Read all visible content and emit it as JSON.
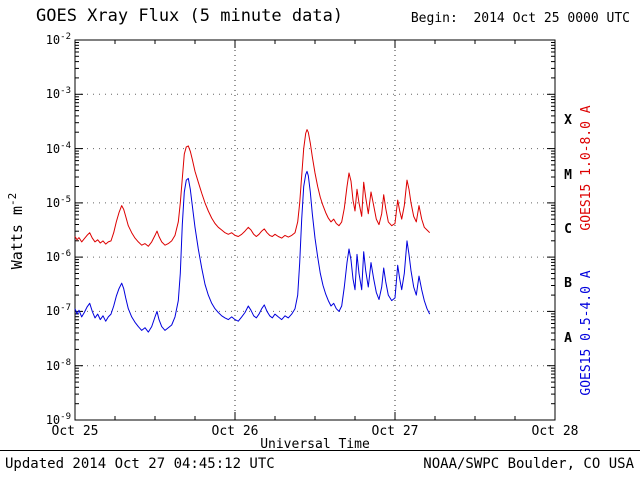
{
  "header": {
    "title": "GOES Xray Flux (5 minute data)",
    "begin_label": "Begin:  2014 Oct 25 0000 UTC"
  },
  "footer": {
    "updated": "Updated 2014 Oct 27 04:45:12 UTC",
    "source": "NOAA/SWPC Boulder, CO USA"
  },
  "chart_data": {
    "type": "line",
    "title": "GOES Xray Flux (5 minute data)",
    "xlabel": "Universal Time",
    "ylabel": "Watts m^-2",
    "x_axis_note": "hours since Begin: 2014 Oct 25 0000 UTC",
    "y_axis_scale": "log10 Watts m^-2",
    "xlim_hours": [
      0,
      72
    ],
    "ylim_log10": [
      -9,
      -2
    ],
    "x_tick_hours": [
      0,
      24,
      48,
      72
    ],
    "x_tick_labels": [
      "Oct 25",
      "Oct 26",
      "Oct 27",
      "Oct 28"
    ],
    "y_tick_exponents": [
      -2,
      -3,
      -4,
      -5,
      -6,
      -7,
      -8,
      -9
    ],
    "vertical_gridlines_hours": [
      24,
      48
    ],
    "grid": "dotted horizontal lines each decade, dotted vertical lines at day boundaries",
    "legend_position": "right-edge rotated labels",
    "flare_classes": [
      {
        "label": "X",
        "center_log10": -3.5
      },
      {
        "label": "M",
        "center_log10": -4.5
      },
      {
        "label": "C",
        "center_log10": -5.5
      },
      {
        "label": "B",
        "center_log10": -6.5
      },
      {
        "label": "A",
        "center_log10": -7.5
      }
    ],
    "series": [
      {
        "name": "GOES15 1.0-8.0 A",
        "color": "#dd0000",
        "points": [
          [
            0,
            -5.62
          ],
          [
            0.3,
            -5.68
          ],
          [
            0.6,
            -5.64
          ],
          [
            1,
            -5.72
          ],
          [
            1.4,
            -5.66
          ],
          [
            1.8,
            -5.6
          ],
          [
            2.2,
            -5.55
          ],
          [
            2.6,
            -5.65
          ],
          [
            3,
            -5.72
          ],
          [
            3.4,
            -5.68
          ],
          [
            3.8,
            -5.74
          ],
          [
            4.2,
            -5.7
          ],
          [
            4.6,
            -5.76
          ],
          [
            5,
            -5.72
          ],
          [
            5.4,
            -5.7
          ],
          [
            5.8,
            -5.55
          ],
          [
            6.2,
            -5.35
          ],
          [
            6.6,
            -5.18
          ],
          [
            7,
            -5.05
          ],
          [
            7.3,
            -5.12
          ],
          [
            7.6,
            -5.25
          ],
          [
            8,
            -5.42
          ],
          [
            8.5,
            -5.55
          ],
          [
            9,
            -5.65
          ],
          [
            9.5,
            -5.72
          ],
          [
            10,
            -5.78
          ],
          [
            10.5,
            -5.75
          ],
          [
            11,
            -5.8
          ],
          [
            11.5,
            -5.72
          ],
          [
            12,
            -5.6
          ],
          [
            12.3,
            -5.52
          ],
          [
            12.6,
            -5.62
          ],
          [
            13,
            -5.72
          ],
          [
            13.5,
            -5.78
          ],
          [
            14,
            -5.75
          ],
          [
            14.5,
            -5.7
          ],
          [
            15,
            -5.6
          ],
          [
            15.5,
            -5.35
          ],
          [
            15.8,
            -5
          ],
          [
            16.1,
            -4.55
          ],
          [
            16.4,
            -4.1
          ],
          [
            16.7,
            -3.97
          ],
          [
            17,
            -3.95
          ],
          [
            17.3,
            -4.05
          ],
          [
            17.6,
            -4.2
          ],
          [
            18,
            -4.42
          ],
          [
            18.5,
            -4.62
          ],
          [
            19,
            -4.82
          ],
          [
            19.5,
            -5
          ],
          [
            20,
            -5.15
          ],
          [
            20.5,
            -5.28
          ],
          [
            21,
            -5.38
          ],
          [
            21.5,
            -5.45
          ],
          [
            22,
            -5.5
          ],
          [
            22.5,
            -5.55
          ],
          [
            23,
            -5.58
          ],
          [
            23.5,
            -5.55
          ],
          [
            24,
            -5.6
          ],
          [
            24.5,
            -5.62
          ],
          [
            25,
            -5.58
          ],
          [
            25.5,
            -5.52
          ],
          [
            26,
            -5.45
          ],
          [
            26.4,
            -5.5
          ],
          [
            26.8,
            -5.58
          ],
          [
            27.2,
            -5.62
          ],
          [
            27.6,
            -5.58
          ],
          [
            28,
            -5.52
          ],
          [
            28.4,
            -5.48
          ],
          [
            28.8,
            -5.55
          ],
          [
            29.2,
            -5.6
          ],
          [
            29.6,
            -5.62
          ],
          [
            30,
            -5.58
          ],
          [
            30.5,
            -5.62
          ],
          [
            31,
            -5.65
          ],
          [
            31.5,
            -5.6
          ],
          [
            32,
            -5.63
          ],
          [
            32.5,
            -5.6
          ],
          [
            33,
            -5.55
          ],
          [
            33.4,
            -5.35
          ],
          [
            33.7,
            -5
          ],
          [
            34,
            -4.5
          ],
          [
            34.3,
            -4
          ],
          [
            34.6,
            -3.72
          ],
          [
            34.8,
            -3.65
          ],
          [
            35,
            -3.7
          ],
          [
            35.3,
            -3.9
          ],
          [
            35.6,
            -4.15
          ],
          [
            36,
            -4.45
          ],
          [
            36.4,
            -4.7
          ],
          [
            36.8,
            -4.9
          ],
          [
            37.2,
            -5.05
          ],
          [
            37.6,
            -5.18
          ],
          [
            38,
            -5.28
          ],
          [
            38.4,
            -5.35
          ],
          [
            38.8,
            -5.3
          ],
          [
            39.2,
            -5.38
          ],
          [
            39.6,
            -5.42
          ],
          [
            40,
            -5.35
          ],
          [
            40.4,
            -5.1
          ],
          [
            40.8,
            -4.7
          ],
          [
            41.1,
            -4.45
          ],
          [
            41.4,
            -4.6
          ],
          [
            41.7,
            -4.95
          ],
          [
            42,
            -5.15
          ],
          [
            42.3,
            -4.75
          ],
          [
            42.6,
            -5
          ],
          [
            43,
            -5.25
          ],
          [
            43.3,
            -4.62
          ],
          [
            43.6,
            -4.9
          ],
          [
            44,
            -5.2
          ],
          [
            44.4,
            -4.8
          ],
          [
            44.8,
            -5.05
          ],
          [
            45.2,
            -5.3
          ],
          [
            45.6,
            -5.4
          ],
          [
            46,
            -5.2
          ],
          [
            46.3,
            -4.85
          ],
          [
            46.6,
            -5.1
          ],
          [
            47,
            -5.35
          ],
          [
            47.5,
            -5.42
          ],
          [
            48,
            -5.38
          ],
          [
            48.4,
            -4.95
          ],
          [
            48.7,
            -5.15
          ],
          [
            49,
            -5.3
          ],
          [
            49.4,
            -5.05
          ],
          [
            49.8,
            -4.58
          ],
          [
            50.1,
            -4.75
          ],
          [
            50.4,
            -5
          ],
          [
            50.8,
            -5.25
          ],
          [
            51.2,
            -5.35
          ],
          [
            51.6,
            -5.05
          ],
          [
            52,
            -5.3
          ],
          [
            52.4,
            -5.45
          ],
          [
            52.8,
            -5.5
          ],
          [
            53.2,
            -5.55
          ]
        ]
      },
      {
        "name": "GOES15 0.5-4.0 A",
        "color": "#0000dd",
        "points": [
          [
            0,
            -6.95
          ],
          [
            0.3,
            -7.05
          ],
          [
            0.6,
            -6.98
          ],
          [
            1,
            -7.1
          ],
          [
            1.4,
            -7.02
          ],
          [
            1.8,
            -6.92
          ],
          [
            2.2,
            -6.85
          ],
          [
            2.6,
            -7
          ],
          [
            3,
            -7.12
          ],
          [
            3.4,
            -7.05
          ],
          [
            3.8,
            -7.15
          ],
          [
            4.2,
            -7.08
          ],
          [
            4.6,
            -7.18
          ],
          [
            5,
            -7.1
          ],
          [
            5.4,
            -7.05
          ],
          [
            5.8,
            -6.9
          ],
          [
            6.2,
            -6.72
          ],
          [
            6.6,
            -6.58
          ],
          [
            7,
            -6.48
          ],
          [
            7.3,
            -6.58
          ],
          [
            7.6,
            -6.75
          ],
          [
            8,
            -6.95
          ],
          [
            8.5,
            -7.1
          ],
          [
            9,
            -7.2
          ],
          [
            9.5,
            -7.28
          ],
          [
            10,
            -7.35
          ],
          [
            10.5,
            -7.3
          ],
          [
            11,
            -7.38
          ],
          [
            11.5,
            -7.28
          ],
          [
            12,
            -7.1
          ],
          [
            12.3,
            -7
          ],
          [
            12.6,
            -7.15
          ],
          [
            13,
            -7.28
          ],
          [
            13.5,
            -7.35
          ],
          [
            14,
            -7.3
          ],
          [
            14.5,
            -7.25
          ],
          [
            15,
            -7.1
          ],
          [
            15.5,
            -6.8
          ],
          [
            15.8,
            -6.3
          ],
          [
            16.1,
            -5.4
          ],
          [
            16.4,
            -4.8
          ],
          [
            16.7,
            -4.58
          ],
          [
            17,
            -4.55
          ],
          [
            17.3,
            -4.75
          ],
          [
            17.6,
            -5.05
          ],
          [
            18,
            -5.45
          ],
          [
            18.5,
            -5.85
          ],
          [
            19,
            -6.2
          ],
          [
            19.5,
            -6.5
          ],
          [
            20,
            -6.7
          ],
          [
            20.5,
            -6.85
          ],
          [
            21,
            -6.95
          ],
          [
            21.5,
            -7.02
          ],
          [
            22,
            -7.08
          ],
          [
            22.5,
            -7.12
          ],
          [
            23,
            -7.15
          ],
          [
            23.5,
            -7.1
          ],
          [
            24,
            -7.15
          ],
          [
            24.5,
            -7.18
          ],
          [
            25,
            -7.1
          ],
          [
            25.5,
            -7.02
          ],
          [
            26,
            -6.9
          ],
          [
            26.4,
            -6.98
          ],
          [
            26.8,
            -7.08
          ],
          [
            27.2,
            -7.12
          ],
          [
            27.6,
            -7.05
          ],
          [
            28,
            -6.95
          ],
          [
            28.4,
            -6.88
          ],
          [
            28.8,
            -7
          ],
          [
            29.2,
            -7.08
          ],
          [
            29.6,
            -7.12
          ],
          [
            30,
            -7.05
          ],
          [
            30.5,
            -7.1
          ],
          [
            31,
            -7.15
          ],
          [
            31.5,
            -7.08
          ],
          [
            32,
            -7.12
          ],
          [
            32.5,
            -7.05
          ],
          [
            33,
            -6.95
          ],
          [
            33.4,
            -6.7
          ],
          [
            33.7,
            -6.1
          ],
          [
            34,
            -5.3
          ],
          [
            34.3,
            -4.7
          ],
          [
            34.6,
            -4.48
          ],
          [
            34.8,
            -4.42
          ],
          [
            35,
            -4.5
          ],
          [
            35.3,
            -4.8
          ],
          [
            35.6,
            -5.2
          ],
          [
            36,
            -5.65
          ],
          [
            36.4,
            -6
          ],
          [
            36.8,
            -6.3
          ],
          [
            37.2,
            -6.52
          ],
          [
            37.6,
            -6.68
          ],
          [
            38,
            -6.8
          ],
          [
            38.4,
            -6.9
          ],
          [
            38.8,
            -6.85
          ],
          [
            39.2,
            -6.95
          ],
          [
            39.6,
            -7
          ],
          [
            40,
            -6.9
          ],
          [
            40.4,
            -6.55
          ],
          [
            40.8,
            -6.1
          ],
          [
            41.1,
            -5.85
          ],
          [
            41.4,
            -6.05
          ],
          [
            41.7,
            -6.4
          ],
          [
            42,
            -6.6
          ],
          [
            42.3,
            -5.95
          ],
          [
            42.6,
            -6.3
          ],
          [
            43,
            -6.6
          ],
          [
            43.3,
            -5.9
          ],
          [
            43.6,
            -6.25
          ],
          [
            44,
            -6.55
          ],
          [
            44.4,
            -6.1
          ],
          [
            44.8,
            -6.4
          ],
          [
            45.2,
            -6.65
          ],
          [
            45.6,
            -6.78
          ],
          [
            46,
            -6.55
          ],
          [
            46.3,
            -6.2
          ],
          [
            46.6,
            -6.45
          ],
          [
            47,
            -6.7
          ],
          [
            47.5,
            -6.8
          ],
          [
            48,
            -6.75
          ],
          [
            48.4,
            -6.15
          ],
          [
            48.7,
            -6.4
          ],
          [
            49,
            -6.6
          ],
          [
            49.4,
            -6.3
          ],
          [
            49.8,
            -5.7
          ],
          [
            50.1,
            -5.95
          ],
          [
            50.4,
            -6.25
          ],
          [
            50.8,
            -6.55
          ],
          [
            51.2,
            -6.7
          ],
          [
            51.6,
            -6.35
          ],
          [
            52,
            -6.6
          ],
          [
            52.4,
            -6.8
          ],
          [
            52.8,
            -6.95
          ],
          [
            53.2,
            -7.05
          ]
        ]
      }
    ]
  }
}
